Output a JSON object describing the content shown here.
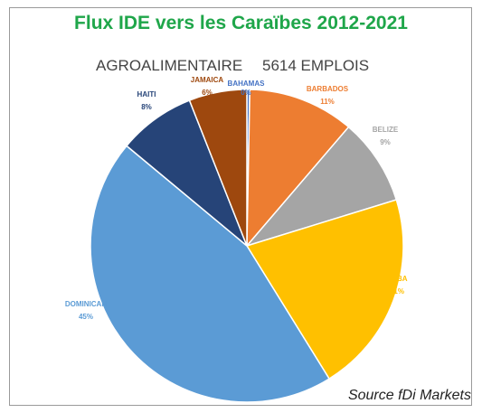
{
  "chart_data": {
    "type": "pie",
    "title": "Flux IDE vers les Caraïbes 2012-2021",
    "subtitle_sector": "AGROALIMENTAIRE",
    "subtitle_jobs": "5614 EMPLOIS",
    "source": "Source fDi Markets",
    "slices": [
      {
        "label": "BAHAMAS",
        "value_label": "0%",
        "value": 0.3,
        "color": "#4472c4"
      },
      {
        "label": "BARBADOS",
        "value_label": "11%",
        "value": 11,
        "color": "#ed7d31"
      },
      {
        "label": "BELIZE",
        "value_label": "9%",
        "value": 9,
        "color": "#a5a5a5"
      },
      {
        "label": "CUBA",
        "value_label": "21%",
        "value": 21,
        "color": "#ffc000"
      },
      {
        "label": "DOMINICAN",
        "value_label": "45%",
        "value": 45,
        "color": "#5b9bd5"
      },
      {
        "label": "HAITI",
        "value_label": "8%",
        "value": 8,
        "color": "#264478"
      },
      {
        "label": "JAMAICA",
        "value_label": "6%",
        "value": 6,
        "color": "#9e480e"
      }
    ]
  }
}
